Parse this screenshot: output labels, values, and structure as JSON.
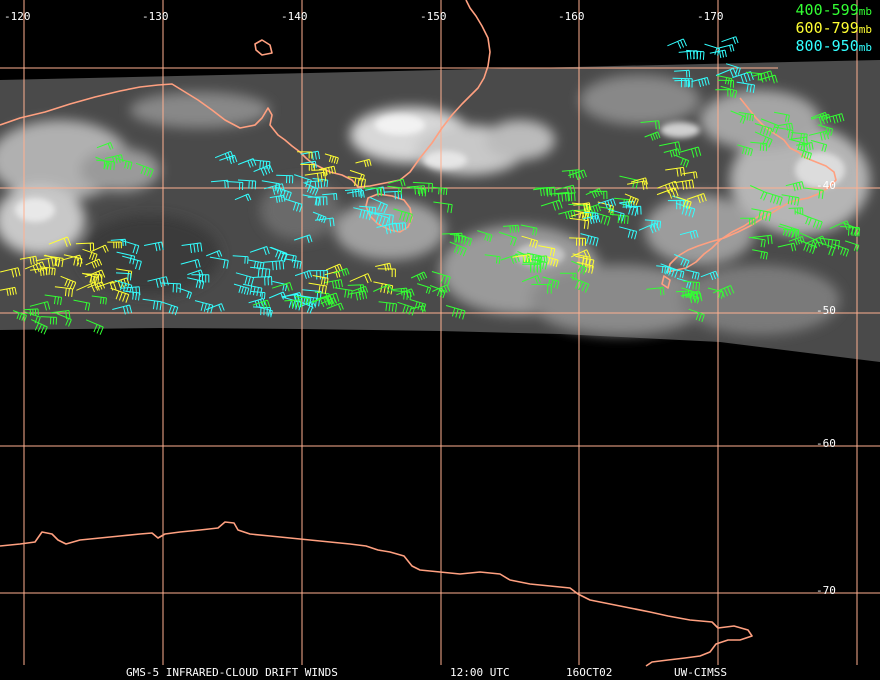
{
  "legend": [
    {
      "range": "400-599",
      "unit": "mb",
      "color": "#33ff33"
    },
    {
      "range": "600-799",
      "unit": "mb",
      "color": "#ffff33"
    },
    {
      "range": "800-950",
      "unit": "mb",
      "color": "#33ffff"
    }
  ],
  "longitude_labels": [
    "-120",
    "-130",
    "-140",
    "-150",
    "-160",
    "-170"
  ],
  "latitude_labels": [
    "-40",
    "-50",
    "-60",
    "-70"
  ],
  "footer": {
    "product": "GMS-5 INFRARED-CLOUD DRIFT WINDS",
    "time": "12:00 UTC",
    "date": "16OCT02",
    "source": "UW-CIMSS"
  },
  "colors": {
    "background": "#000000",
    "grid": "#ffb090",
    "coastline": "#ffa080",
    "label": "#ffffff"
  }
}
